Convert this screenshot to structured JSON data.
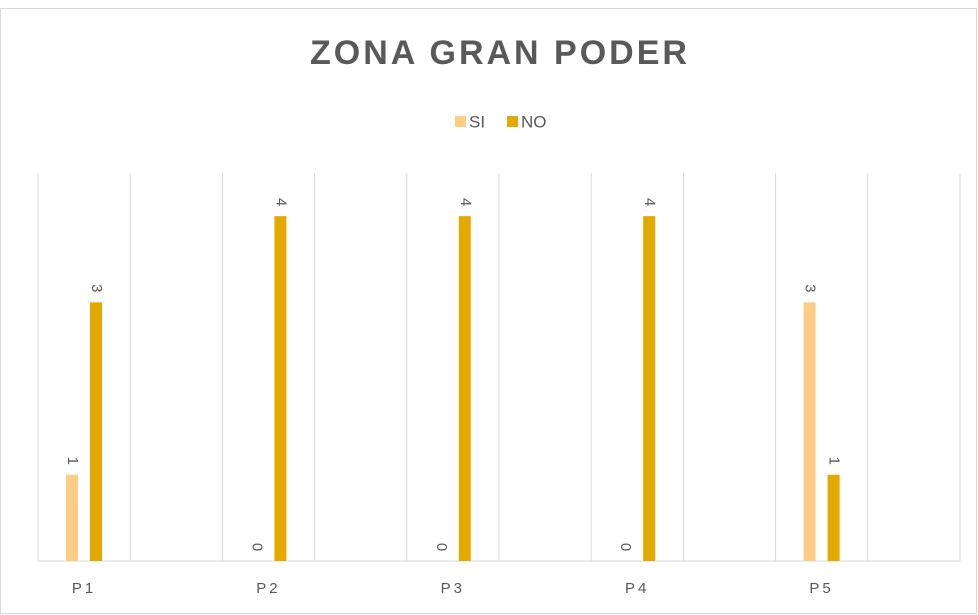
{
  "chart_data": {
    "type": "bar",
    "title": "ZONA GRAN PODER",
    "categories": [
      "P1",
      "P2",
      "P3",
      "P4",
      "P5"
    ],
    "series": [
      {
        "name": "SI",
        "color": "#fdcd85",
        "values": [
          1,
          0,
          0,
          0,
          3
        ]
      },
      {
        "name": "NO",
        "color": "#e2a900",
        "values": [
          3,
          4,
          4,
          4,
          1
        ]
      }
    ],
    "ylim": [
      0,
      4.5
    ]
  }
}
